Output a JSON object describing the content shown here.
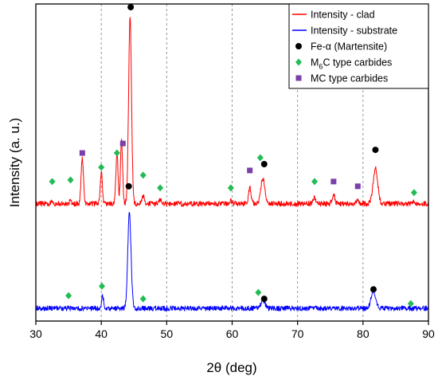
{
  "chart_data": {
    "type": "line",
    "xlabel": "2θ (deg)",
    "ylabel": "Intensity (a. u.)",
    "xlim": [
      30,
      90
    ],
    "x_ticks": [
      30,
      40,
      50,
      60,
      70,
      80,
      90
    ],
    "x_tick_labels": [
      "30",
      "40",
      "50",
      "60",
      "70",
      "80",
      "90"
    ],
    "ylim": [
      0,
      100
    ],
    "grid": "vertical-dashed",
    "legend_position": "top-right",
    "colors": {
      "clad": "#ff0000",
      "substrate": "#0000ff",
      "fe": "#000000",
      "m6c": "#22bb55",
      "mc": "#7a3fa8"
    },
    "series": [
      {
        "name": "Intensity - clad",
        "color": "#ff0000",
        "baseline": 37,
        "peaks": [
          [
            32.5,
            0.8,
            0.15
          ],
          [
            35.3,
            1.0,
            0.15
          ],
          [
            37.1,
            14,
            0.18
          ],
          [
            40.0,
            10,
            0.16
          ],
          [
            42.4,
            16,
            0.16
          ],
          [
            43.1,
            20,
            0.16
          ],
          [
            44.4,
            59,
            0.22
          ],
          [
            46.4,
            2.5,
            0.2
          ],
          [
            49.0,
            1.0,
            0.2
          ],
          [
            59.8,
            1.0,
            0.2
          ],
          [
            62.7,
            5,
            0.2
          ],
          [
            64.7,
            8,
            0.3
          ],
          [
            72.6,
            2.0,
            0.2
          ],
          [
            75.5,
            3.0,
            0.2
          ],
          [
            79.2,
            1.0,
            0.2
          ],
          [
            81.9,
            11,
            0.35
          ],
          [
            87.8,
            0.5,
            0.2
          ]
        ]
      },
      {
        "name": "Intensity - substrate",
        "color": "#0000ff",
        "baseline": 4,
        "peaks": [
          [
            40.2,
            4,
            0.16
          ],
          [
            44.3,
            30,
            0.25
          ],
          [
            64.7,
            2.5,
            0.3
          ],
          [
            81.6,
            5.5,
            0.35
          ]
        ]
      }
    ],
    "markers": [
      {
        "name": "Fe-α (Martensite)",
        "shape": "circle",
        "color": "#000000",
        "points": [
          [
            44.5,
            99
          ],
          [
            64.9,
            49.5
          ],
          [
            81.9,
            54
          ],
          [
            44.2,
            42.5
          ],
          [
            64.9,
            7
          ],
          [
            81.6,
            10
          ]
        ]
      },
      {
        "name": "M6C type carbides",
        "shape": "diamond",
        "color": "#22bb55",
        "points": [
          [
            32.5,
            44
          ],
          [
            35.3,
            44.5
          ],
          [
            40.0,
            48.5
          ],
          [
            42.4,
            53
          ],
          [
            46.4,
            46
          ],
          [
            49.0,
            42
          ],
          [
            59.8,
            42
          ],
          [
            64.3,
            51.5
          ],
          [
            72.6,
            44
          ],
          [
            87.8,
            40.5
          ],
          [
            35.0,
            8
          ],
          [
            40.1,
            11
          ],
          [
            46.4,
            7
          ],
          [
            64.0,
            9
          ],
          [
            87.3,
            5.5
          ]
        ]
      },
      {
        "name": "MC type carbides",
        "shape": "square",
        "color": "#7a3fa8",
        "points": [
          [
            37.1,
            53
          ],
          [
            43.3,
            56
          ],
          [
            62.7,
            47.5
          ],
          [
            75.5,
            44
          ],
          [
            79.2,
            42.5
          ]
        ]
      }
    ],
    "legend": [
      {
        "label": "Intensity - clad",
        "kind": "line",
        "color": "#ff0000"
      },
      {
        "label": "Intensity - substrate",
        "kind": "line",
        "color": "#0000ff"
      },
      {
        "label": "Fe-α (Martensite)",
        "kind": "circle",
        "color": "#000000"
      },
      {
        "label_main": "M",
        "label_sub": "6",
        "label_rest": "C type carbides",
        "kind": "diamond",
        "color": "#22bb55"
      },
      {
        "label": "MC type carbides",
        "kind": "square",
        "color": "#7a3fa8"
      }
    ]
  }
}
